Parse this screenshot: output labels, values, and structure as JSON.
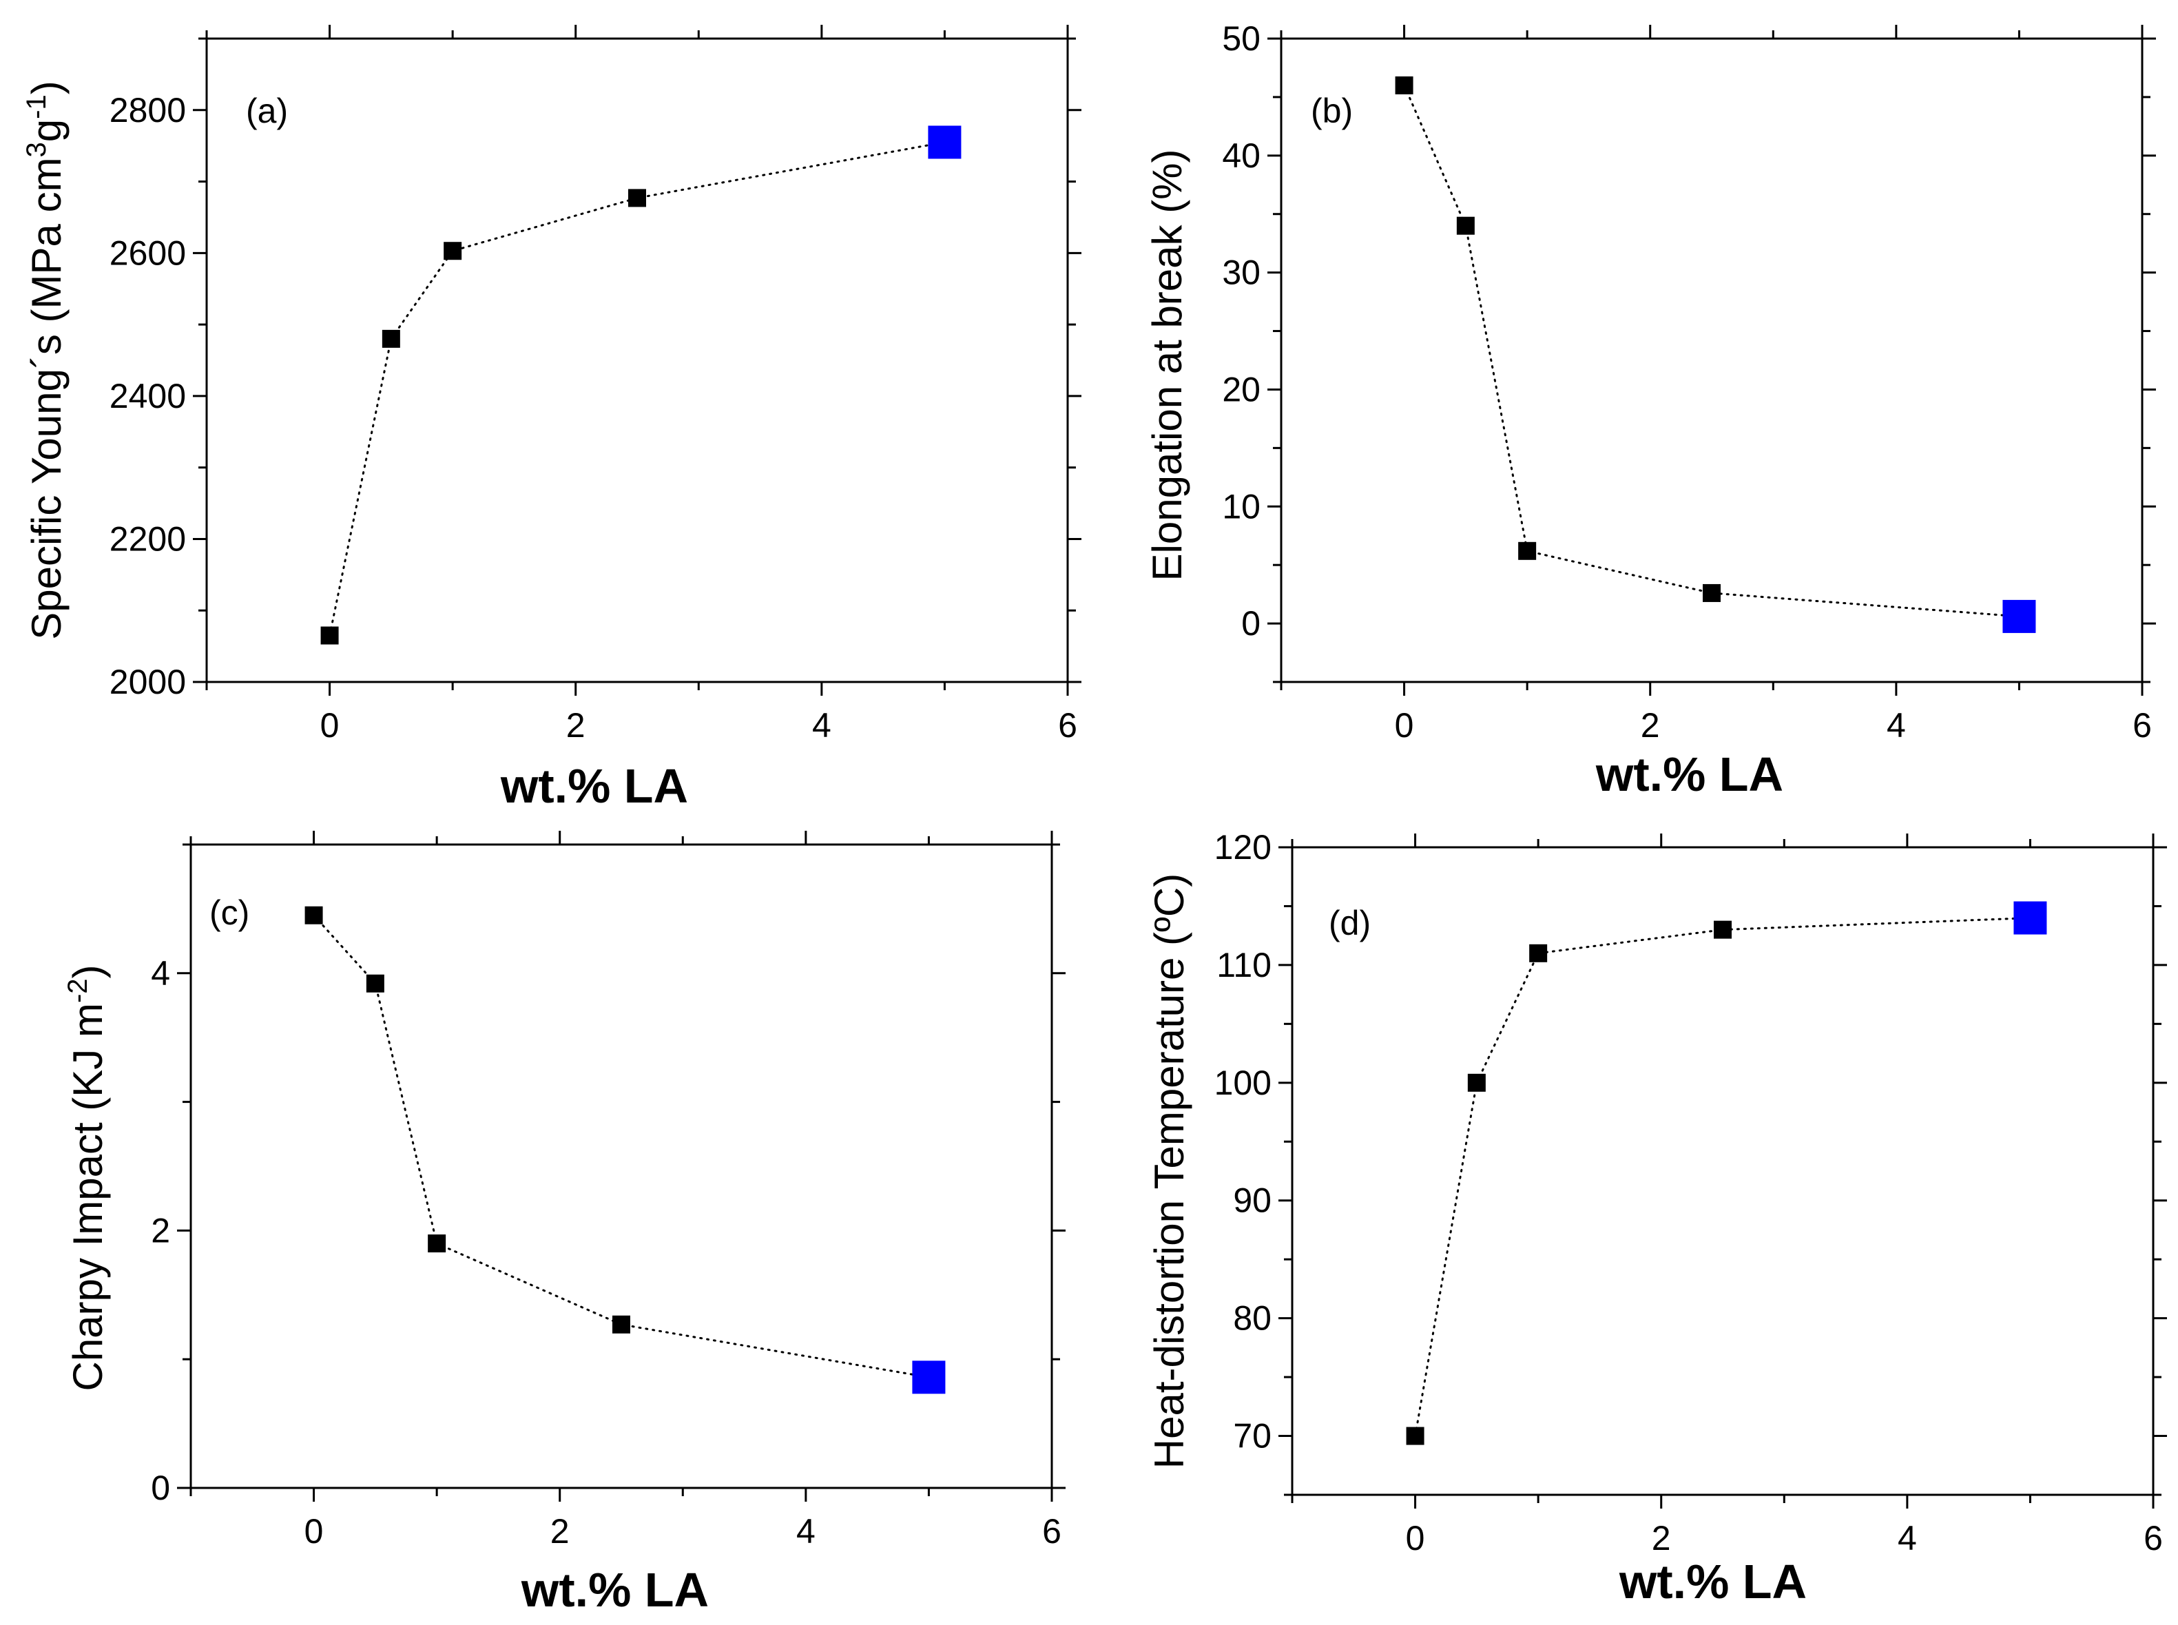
{
  "chart_data": [
    {
      "panel": "(a)",
      "type": "scatter",
      "xlabel": "wt.% LA",
      "ylabel": "Specific Young´s  (MPa cm3g-1)",
      "ylabel_parts": [
        "Specific Young´s  (MPa cm",
        "3",
        "g",
        "-1",
        ")"
      ],
      "xlim": [
        -1,
        6
      ],
      "ylim": [
        2000,
        2900
      ],
      "xticks": [
        0,
        2,
        4,
        6
      ],
      "yticks": [
        2000,
        2200,
        2400,
        2600,
        2800
      ],
      "x": [
        0,
        0.5,
        1,
        2.5,
        5
      ],
      "y": [
        2065,
        2480,
        2603,
        2677,
        2755
      ],
      "highlight_index": 4
    },
    {
      "panel": "(b)",
      "type": "scatter",
      "xlabel": "wt.% LA",
      "ylabel": "Elongation at break (%)",
      "xlim": [
        -1,
        6
      ],
      "ylim": [
        -5,
        50
      ],
      "xticks": [
        0,
        2,
        4,
        6
      ],
      "yticks": [
        0,
        10,
        20,
        30,
        40,
        50
      ],
      "x": [
        0,
        0.5,
        1,
        2.5,
        5
      ],
      "y": [
        46,
        34,
        6.2,
        2.6,
        0.6
      ],
      "highlight_index": 4
    },
    {
      "panel": "(c)",
      "type": "scatter",
      "xlabel": "wt.% LA",
      "ylabel": "Charpy Impact (KJ m-2)",
      "ylabel_parts": [
        "Charpy Impact (KJ m",
        "-2",
        ")"
      ],
      "xlim": [
        -1,
        6
      ],
      "ylim": [
        0,
        5
      ],
      "xticks": [
        0,
        2,
        4,
        6
      ],
      "yticks": [
        0,
        2,
        4
      ],
      "x": [
        0,
        0.5,
        1,
        2.5,
        5
      ],
      "y": [
        4.45,
        3.92,
        1.9,
        1.27,
        0.86
      ],
      "highlight_index": 4
    },
    {
      "panel": "(d)",
      "type": "scatter",
      "xlabel": "wt.% LA",
      "ylabel": "Heat-distortion Temperature (ºC)",
      "xlim": [
        -1,
        6
      ],
      "ylim": [
        65,
        120
      ],
      "xticks": [
        0,
        2,
        4,
        6
      ],
      "yticks": [
        70,
        80,
        90,
        100,
        110,
        120
      ],
      "x": [
        0,
        0.5,
        1,
        2.5,
        5
      ],
      "y": [
        70,
        100,
        111,
        113,
        114
      ],
      "highlight_index": 4
    }
  ],
  "colors": {
    "marker": "#000000",
    "highlight": "#0000ff",
    "axis": "#000000"
  }
}
